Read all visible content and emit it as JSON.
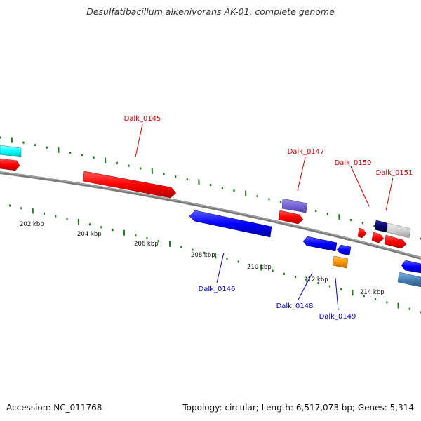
{
  "title": "Desulfatibacillum alkenivorans AK-01, complete genome",
  "footer": {
    "accession": "Accession: NC_011768",
    "summary": "Topology: circular; Length: 6,517,073 bp; Genes: 5,314"
  },
  "colors": {
    "backbone": "#7a7a7a",
    "tick": "#1a7a1a",
    "forward_label": "#cc0000",
    "reverse_label": "#0000bb"
  },
  "scale_labels": [
    "202 kbp",
    "204 kbp",
    "206 kbp",
    "208 kbp",
    "210 kbp",
    "212 kbp",
    "214 kbp"
  ],
  "genes": {
    "forward": [
      {
        "label": "Dalk_0145"
      },
      {
        "label": "Dalk_0147"
      },
      {
        "label": "Dalk_0150"
      },
      {
        "label": "Dalk_0151"
      }
    ],
    "reverse": [
      {
        "label": "Dalk_0146"
      },
      {
        "label": "Dalk_0148"
      },
      {
        "label": "Dalk_0149"
      }
    ]
  }
}
